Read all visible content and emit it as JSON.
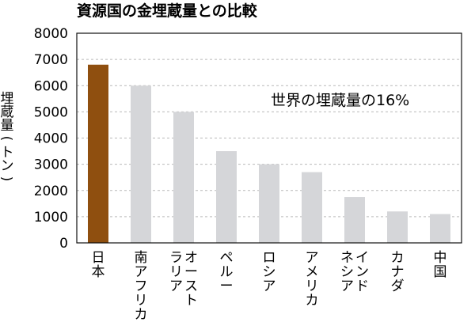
{
  "chart_data": {
    "type": "bar",
    "title": "資源国の金埋蔵量との比較",
    "ylabel": "埋蔵量(トン)",
    "xlabel": "",
    "ylim": [
      0,
      8000
    ],
    "yticks": [
      "0",
      "1000",
      "2000",
      "3000",
      "4000",
      "5000",
      "6000",
      "7000",
      "8000"
    ],
    "categories": [
      [
        "日本"
      ],
      [
        "南アフリカ"
      ],
      [
        "オースト",
        "ラリア"
      ],
      [
        "ペルー"
      ],
      [
        "ロシア"
      ],
      [
        "アメリカ"
      ],
      [
        "インド",
        "ネシア"
      ],
      [
        "カナダ"
      ],
      [
        "中国"
      ]
    ],
    "values": [
      6800,
      6000,
      5000,
      3500,
      3000,
      2700,
      1750,
      1200,
      1100
    ],
    "annotation": "世界の埋蔵量の16%",
    "grid": "horizontal-dashed",
    "colors": {
      "highlight": "#8f4f0f",
      "bar": "#d5d6d9",
      "grid": "#b9b9b9",
      "axis": "#111111"
    }
  }
}
